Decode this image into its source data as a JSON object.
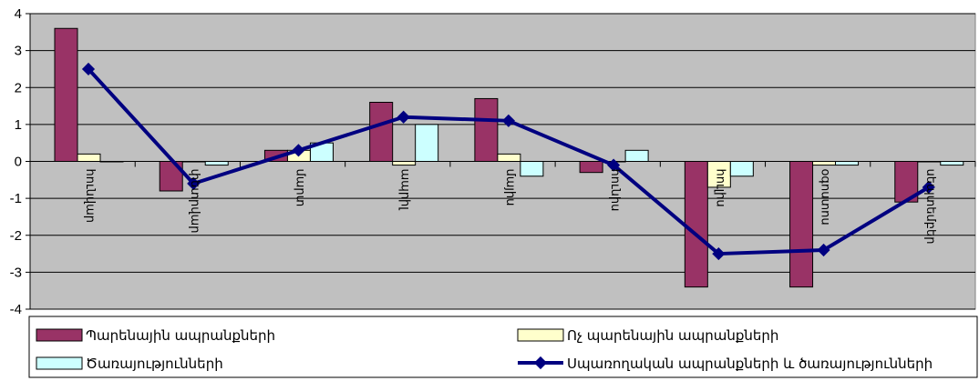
{
  "chart_data": {
    "type": "bar",
    "categories": [
      "հունվար",
      "փետրվար",
      "մարտ",
      "ապրիլ",
      "մայիս",
      "հունիս",
      "հուլիս",
      "օգոստոս",
      "սեպտեմբեր"
    ],
    "series": [
      {
        "name": "Պարենային ապրանքների",
        "kind": "bar",
        "color": "#993366",
        "values": [
          3.6,
          -0.8,
          0.3,
          1.6,
          1.7,
          -0.3,
          -3.4,
          -3.4,
          -1.1
        ]
      },
      {
        "name": "Ոչ պարենային  ապրանքների",
        "kind": "bar",
        "color": "#ffffcc",
        "values": [
          0.2,
          0.0,
          0.3,
          -0.1,
          0.2,
          0.0,
          -0.7,
          -0.1,
          0.0
        ]
      },
      {
        "name": "Ծառայությունների",
        "kind": "bar",
        "color": "#ccffff",
        "values": [
          0.0,
          -0.1,
          0.5,
          1.0,
          -0.4,
          0.3,
          -0.4,
          -0.1,
          -0.1
        ]
      },
      {
        "name": "Սպառողական ապրանքների և ծառայությունների",
        "kind": "line",
        "color": "#000080",
        "values": [
          2.5,
          -0.6,
          0.3,
          1.2,
          1.1,
          -0.1,
          -2.5,
          -2.4,
          -0.7
        ]
      }
    ],
    "ylim": [
      -4,
      4
    ],
    "yticks": [
      4,
      3,
      2,
      1,
      0,
      -1,
      -2,
      -3,
      -4
    ],
    "plot_background": "#c0c0c0",
    "grid": true,
    "legend": "bottom"
  }
}
